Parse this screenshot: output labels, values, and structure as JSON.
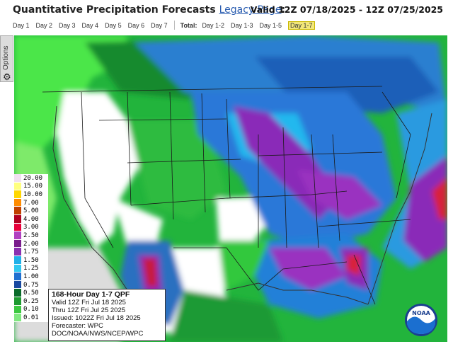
{
  "header": {
    "title": "Quantitative Precipitation Forecasts",
    "legacy_link": "Legacy Page",
    "colon": ":",
    "valid_range": "Valid 12Z 07/18/2025 - 12Z 07/25/2025"
  },
  "day_tabs": [
    "Day 1",
    "Day 2",
    "Day 3",
    "Day 4",
    "Day 5",
    "Day 6",
    "Day 7"
  ],
  "total_label": "Total:",
  "total_tabs": [
    "Day 1-2",
    "Day 1-3",
    "Day 1-5",
    "Day 1-7"
  ],
  "active_tab": "Day 1-7",
  "options_label": "Options",
  "legend": [
    {
      "value": "20.00",
      "color": "#f0e0f0"
    },
    {
      "value": "15.00",
      "color": "#ffff80"
    },
    {
      "value": "10.00",
      "color": "#ffd700"
    },
    {
      "value": "7.00",
      "color": "#ff8c00"
    },
    {
      "value": "5.00",
      "color": "#c04000"
    },
    {
      "value": "4.00",
      "color": "#b00020"
    },
    {
      "value": "3.00",
      "color": "#e8003a"
    },
    {
      "value": "2.50",
      "color": "#b040c0"
    },
    {
      "value": "2.00",
      "color": "#7a1c8c"
    },
    {
      "value": "1.75",
      "color": "#8a30b0"
    },
    {
      "value": "1.50",
      "color": "#20b0e8"
    },
    {
      "value": "1.25",
      "color": "#30c8f0"
    },
    {
      "value": "1.00",
      "color": "#2070d0"
    },
    {
      "value": "0.75",
      "color": "#1848a0"
    },
    {
      "value": "0.50",
      "color": "#0a6a2a"
    },
    {
      "value": "0.25",
      "color": "#1e9a30"
    },
    {
      "value": "0.10",
      "color": "#3cc840"
    },
    {
      "value": "0.01",
      "color": "#80e880"
    }
  ],
  "info": {
    "heading": "168-Hour Day 1-7 QPF",
    "valid": "Valid 12Z Fri Jul 18 2025",
    "thru": "Thru 12Z Fri Jul 25 2025",
    "issued": "Issued: 1022Z Fri Jul 18 2025",
    "forecaster": "Forecaster: WPC",
    "org": "DOC/NOAA/NWS/NCEP/WPC"
  },
  "logo_text": "NOAA"
}
